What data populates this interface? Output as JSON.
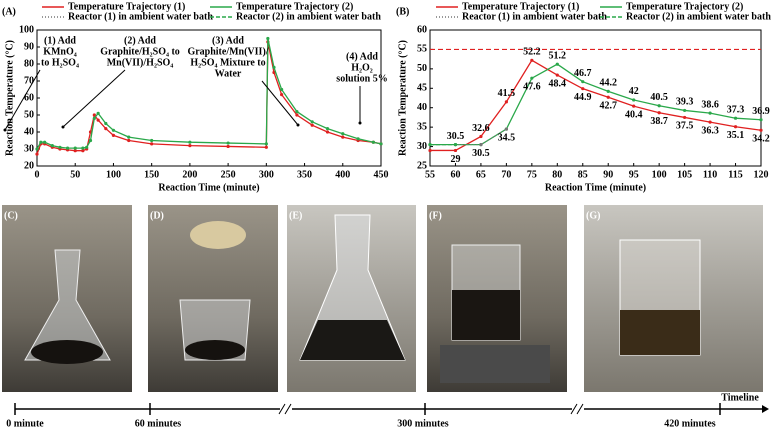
{
  "chart_data": [
    {
      "type": "line",
      "panel": "(A)",
      "xlabel": "Reaction Time (minute)",
      "ylabel": "Reaction Temperature (°C)",
      "x": [
        0,
        5,
        10,
        20,
        30,
        40,
        50,
        60,
        65,
        70,
        75,
        80,
        90,
        100,
        120,
        150,
        200,
        250,
        300,
        302,
        310,
        320,
        340,
        360,
        380,
        400,
        420,
        440,
        450
      ],
      "series": [
        {
          "name": "Temperature Trajectory (1)",
          "color": "#e02020",
          "values": [
            27,
            33,
            33,
            31,
            30,
            29.5,
            29,
            29,
            30,
            40,
            50,
            47,
            42,
            38,
            35,
            33,
            32,
            31.5,
            31,
            93,
            75,
            62,
            50,
            44,
            40,
            37,
            35,
            34,
            33
          ]
        },
        {
          "name": "Temperature Trajectory (2)",
          "color": "#2aa84a",
          "values": [
            30,
            34,
            34,
            32,
            31,
            30.5,
            30.5,
            30.5,
            31,
            35,
            48,
            51,
            45,
            41,
            37,
            35,
            34,
            33.5,
            33,
            95,
            78,
            65,
            52,
            46,
            42,
            39,
            36,
            34,
            33
          ]
        },
        {
          "name": "Reactor (1) in ambient water bath",
          "color": "#777777",
          "dash": "1,2"
        },
        {
          "name": "Reactor (2) in ambient water bath",
          "color": "#2aa84a",
          "dash": "4,2"
        }
      ],
      "annotations": [
        [
          "(1) Add",
          "KMnO₄",
          "to H₂SO₄"
        ],
        [
          "(2) Add",
          "Graphite/H₂SO₄ to",
          "Mn(VII)/H₂SO₄"
        ],
        [
          "(3) Add",
          "Graphite/Mn(VII)/",
          "H₂SO₄ Mixture to",
          "Water"
        ],
        [
          "(4) Add",
          "H₂O₂",
          "solution 5%"
        ]
      ],
      "xlim": [
        0,
        450
      ],
      "xticks": [
        0,
        50,
        100,
        150,
        200,
        250,
        300,
        350,
        400,
        450
      ],
      "ylim": [
        20,
        100
      ],
      "yticks": [
        20,
        30,
        40,
        50,
        60,
        70,
        80,
        90,
        100
      ]
    },
    {
      "type": "line",
      "panel": "(B)",
      "xlabel": "Reaction Time (minute)",
      "ylabel": "Reaction Temperature (°C)",
      "x": [
        55,
        60,
        65,
        70,
        75,
        80,
        85,
        90,
        95,
        100,
        105,
        110,
        115,
        120
      ],
      "series": [
        {
          "name": "Temperature Trajectory (1)",
          "color": "#e02020",
          "labels": true,
          "values": [
            29,
            29,
            32.6,
            41.5,
            52.2,
            48.4,
            44.9,
            42.7,
            40.4,
            38.7,
            37.5,
            36.3,
            35.1,
            34.2
          ]
        },
        {
          "name": "Temperature Trajectory (2)",
          "color": "#2aa84a",
          "labels": true,
          "values": [
            30.5,
            30.5,
            30.5,
            34.5,
            47.6,
            51.2,
            46.7,
            44.2,
            42,
            40.5,
            39.3,
            38.6,
            37.3,
            36.9
          ]
        },
        {
          "name": "Reactor (1) in ambient water bath",
          "color": "#777777",
          "dash": "1,2",
          "values": [
            null,
            30.5,
            30.5,
            34.5,
            null,
            null,
            null,
            null,
            null,
            null,
            null,
            null,
            null,
            null
          ]
        },
        {
          "name": "Reactor (2) in ambient water bath",
          "color": "#2aa84a",
          "dash": "4,2",
          "values": [
            30.5,
            30.5,
            null,
            null,
            null,
            null,
            null,
            null,
            null,
            null,
            null,
            null,
            null,
            null
          ]
        }
      ],
      "hline": {
        "value": 55,
        "color": "#e02020"
      },
      "xlim": [
        55,
        120
      ],
      "xticks": [
        55,
        60,
        65,
        70,
        75,
        80,
        85,
        90,
        95,
        100,
        105,
        110,
        115,
        120
      ],
      "ylim": [
        25,
        60
      ],
      "yticks": [
        25,
        30,
        35,
        40,
        45,
        50,
        55,
        60
      ]
    }
  ],
  "photos": {
    "labels": [
      "(C)",
      "(D)",
      "(E)",
      "(F)",
      "(G)"
    ]
  },
  "timeline": {
    "title": "Timeline",
    "labels": [
      "0 minute",
      "60 minutes",
      "300 minutes",
      "420 minutes"
    ]
  }
}
